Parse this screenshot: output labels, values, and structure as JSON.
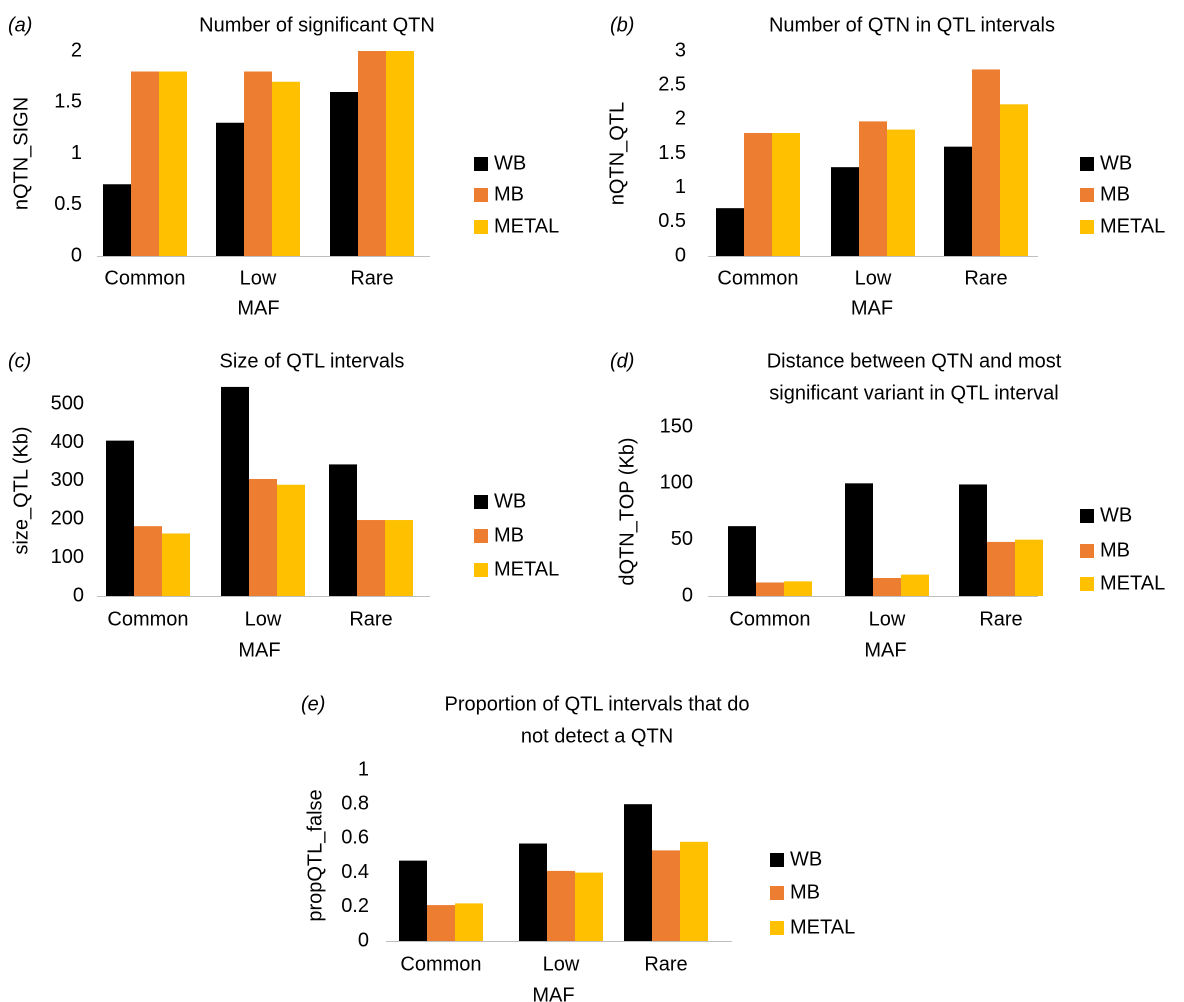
{
  "legend": [
    "WB",
    "MB",
    "METAL"
  ],
  "colors": {
    "WB": "#000000",
    "MB": "#ED7D31",
    "METAL": "#FFC000"
  },
  "chart_data": [
    {
      "type": "bar",
      "panel": "(a)",
      "title": [
        "Number  of significant  QTN"
      ],
      "xlabel": "MAF",
      "ylabel": "nQTN_SIGN",
      "categories": [
        "Common",
        "Low",
        "Rare"
      ],
      "ylim": [
        0,
        2
      ],
      "yticks": [
        0,
        0.5,
        1,
        1.5,
        2
      ],
      "yticklabels": [
        "0",
        "0.5",
        "1",
        "1.5",
        "2"
      ],
      "series": [
        {
          "name": "WB",
          "values": [
            0.7,
            1.3,
            1.6
          ]
        },
        {
          "name": "MB",
          "values": [
            1.8,
            1.8,
            2.0
          ]
        },
        {
          "name": "METAL",
          "values": [
            1.8,
            1.7,
            2.0
          ]
        }
      ]
    },
    {
      "type": "bar",
      "panel": "(b)",
      "title": [
        "Number  of QTN  in  QTL intervals"
      ],
      "xlabel": "MAF",
      "ylabel": "nQTN_QTL",
      "categories": [
        "Common",
        "Low",
        "Rare"
      ],
      "ylim": [
        0,
        3
      ],
      "yticks": [
        0,
        0.5,
        1,
        1.5,
        2,
        2.5,
        3
      ],
      "yticklabels": [
        "0",
        "0.5",
        "1",
        "1.5",
        "2",
        "2.5",
        "3"
      ],
      "series": [
        {
          "name": "WB",
          "values": [
            0.7,
            1.3,
            1.6
          ]
        },
        {
          "name": "MB",
          "values": [
            1.8,
            1.97,
            2.73
          ]
        },
        {
          "name": "METAL",
          "values": [
            1.8,
            1.85,
            2.22
          ]
        }
      ]
    },
    {
      "type": "bar",
      "panel": "(c)",
      "title": [
        "Size of QTL intervals"
      ],
      "xlabel": "MAF",
      "ylabel": "size_QTL (Kb)",
      "categories": [
        "Common",
        "Low",
        "Rare"
      ],
      "ylim": [
        0,
        550
      ],
      "yticks": [
        0,
        100,
        200,
        300,
        400,
        500
      ],
      "yticklabels": [
        "0",
        "100",
        "200",
        "300",
        "400",
        "500"
      ],
      "series": [
        {
          "name": "WB",
          "values": [
            405,
            545,
            343
          ]
        },
        {
          "name": "MB",
          "values": [
            182,
            305,
            198
          ]
        },
        {
          "name": "METAL",
          "values": [
            163,
            290,
            198
          ]
        }
      ]
    },
    {
      "type": "bar",
      "panel": "(d)",
      "title": [
        "Distance  between  QTN  and  most",
        "significant  variant  in  QTL interval"
      ],
      "xlabel": "MAF",
      "ylabel": "dQTN_TOP (Kb)",
      "categories": [
        "Common",
        "Low",
        "Rare"
      ],
      "ylim": [
        0,
        150
      ],
      "yticks": [
        0,
        50,
        100,
        150
      ],
      "yticklabels": [
        "0",
        "50",
        "100",
        "150"
      ],
      "series": [
        {
          "name": "WB",
          "values": [
            62,
            100,
            99
          ]
        },
        {
          "name": "MB",
          "values": [
            12,
            16,
            48
          ]
        },
        {
          "name": "METAL",
          "values": [
            13,
            19,
            50
          ]
        }
      ]
    },
    {
      "type": "bar",
      "panel": "(e)",
      "title": [
        "Proportion  of QTL intervals  that  do",
        "not  detect  a QTN"
      ],
      "xlabel": "MAF",
      "ylabel": "propQTL_false",
      "categories": [
        "Common",
        "Low",
        "Rare"
      ],
      "ylim": [
        0,
        1
      ],
      "yticks": [
        0,
        0.2,
        0.4,
        0.6,
        0.8,
        1
      ],
      "yticklabels": [
        "0",
        "0.2",
        "0.4",
        "0.6",
        "0.8",
        "1"
      ],
      "series": [
        {
          "name": "WB",
          "values": [
            0.47,
            0.57,
            0.8
          ]
        },
        {
          "name": "MB",
          "values": [
            0.21,
            0.41,
            0.53
          ]
        },
        {
          "name": "METAL",
          "values": [
            0.22,
            0.4,
            0.58
          ]
        }
      ]
    }
  ]
}
